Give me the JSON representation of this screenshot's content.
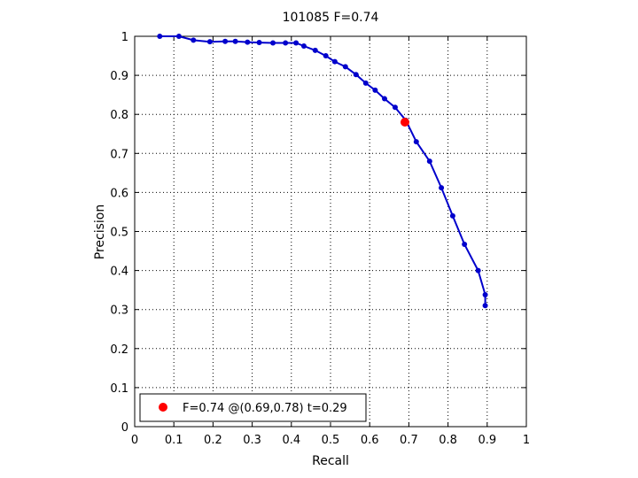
{
  "chart_data": {
    "type": "line",
    "title": "101085 F=0.74",
    "xlabel": "Recall",
    "ylabel": "Precision",
    "xlim": [
      0,
      1
    ],
    "ylim": [
      0,
      1
    ],
    "grid": true,
    "legend_position": "bottom-left",
    "x_ticks": [
      "0",
      "0.1",
      "0.2",
      "0.3",
      "0.4",
      "0.5",
      "0.6",
      "0.7",
      "0.8",
      "0.9",
      "1"
    ],
    "y_ticks": [
      "0",
      "0.1",
      "0.2",
      "0.3",
      "0.4",
      "0.5",
      "0.6",
      "0.7",
      "0.8",
      "0.9",
      "1"
    ],
    "series": [
      {
        "color": "#0000cc",
        "points": [
          [
            0.064,
            1.0
          ],
          [
            0.113,
            1.0
          ],
          [
            0.15,
            0.99
          ],
          [
            0.192,
            0.986
          ],
          [
            0.231,
            0.987
          ],
          [
            0.257,
            0.987
          ],
          [
            0.288,
            0.985
          ],
          [
            0.318,
            0.984
          ],
          [
            0.353,
            0.983
          ],
          [
            0.385,
            0.983
          ],
          [
            0.412,
            0.983
          ],
          [
            0.432,
            0.975
          ],
          [
            0.461,
            0.964
          ],
          [
            0.488,
            0.95
          ],
          [
            0.511,
            0.935
          ],
          [
            0.538,
            0.922
          ],
          [
            0.565,
            0.902
          ],
          [
            0.59,
            0.88
          ],
          [
            0.614,
            0.862
          ],
          [
            0.638,
            0.84
          ],
          [
            0.665,
            0.818
          ],
          [
            0.692,
            0.785
          ],
          [
            0.719,
            0.73
          ],
          [
            0.753,
            0.68
          ],
          [
            0.783,
            0.612
          ],
          [
            0.812,
            0.54
          ],
          [
            0.842,
            0.467
          ],
          [
            0.877,
            0.4
          ],
          [
            0.895,
            0.338
          ],
          [
            0.895,
            0.31
          ]
        ]
      }
    ],
    "highlight": {
      "x": 0.69,
      "y": 0.78,
      "color": "#ff0000",
      "legend_label": "F=0.74 @(0.69,0.78) t=0.29"
    }
  }
}
